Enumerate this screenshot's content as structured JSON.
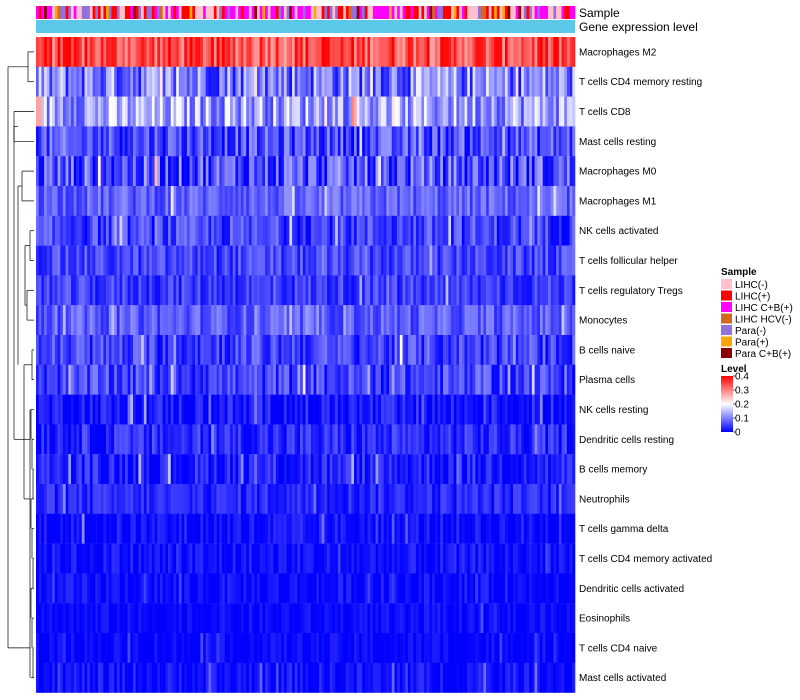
{
  "chart_data": {
    "type": "heatmap",
    "title": "",
    "annotations": {
      "sample_label": "Sample",
      "expression_label": "Gene expression level",
      "expression_color": "#5bc8ea"
    },
    "rows": [
      {
        "label": "Macrophages M2",
        "mean": 0.34,
        "spread": 0.07
      },
      {
        "label": "T cells CD4 memory resting",
        "mean": 0.1,
        "spread": 0.09
      },
      {
        "label": "T cells CD8",
        "mean": 0.13,
        "spread": 0.08
      },
      {
        "label": "Mast cells resting",
        "mean": 0.06,
        "spread": 0.06
      },
      {
        "label": "Macrophages M0",
        "mean": 0.06,
        "spread": 0.08
      },
      {
        "label": "Macrophages M1",
        "mean": 0.075,
        "spread": 0.04
      },
      {
        "label": "NK cells activated",
        "mean": 0.05,
        "spread": 0.05
      },
      {
        "label": "T cells follicular helper",
        "mean": 0.05,
        "spread": 0.04
      },
      {
        "label": "T cells regulatory  Tregs",
        "mean": 0.045,
        "spread": 0.04
      },
      {
        "label": "Monocytes",
        "mean": 0.07,
        "spread": 0.04
      },
      {
        "label": "B cells naive",
        "mean": 0.05,
        "spread": 0.05
      },
      {
        "label": "Plasma cells",
        "mean": 0.05,
        "spread": 0.05
      },
      {
        "label": "NK cells resting",
        "mean": 0.015,
        "spread": 0.04
      },
      {
        "label": "Dendritic cells resting",
        "mean": 0.03,
        "spread": 0.04
      },
      {
        "label": "B cells memory",
        "mean": 0.025,
        "spread": 0.04
      },
      {
        "label": "Neutrophils",
        "mean": 0.03,
        "spread": 0.03
      },
      {
        "label": "T cells gamma delta",
        "mean": 0.01,
        "spread": 0.03
      },
      {
        "label": "T cells CD4 memory activated",
        "mean": 0.01,
        "spread": 0.03
      },
      {
        "label": "Dendritic cells activated",
        "mean": 0.008,
        "spread": 0.025
      },
      {
        "label": "Eosinophils",
        "mean": 0.005,
        "spread": 0.02
      },
      {
        "label": "T cells CD4 naive",
        "mean": 0.005,
        "spread": 0.02
      },
      {
        "label": "Mast cells activated",
        "mean": 0.01,
        "spread": 0.03
      }
    ],
    "n_samples": 200,
    "color_scale": {
      "min": 0,
      "max": 0.4,
      "stops": [
        {
          "value": 0,
          "color": "#0000ff"
        },
        {
          "value": 0.2,
          "color": "#ffffff"
        },
        {
          "value": 0.4,
          "color": "#ff0000"
        }
      ]
    },
    "legend_sample": {
      "title": "Sample",
      "items": [
        {
          "label": "LIHC(-)",
          "color": "#ffc0cb"
        },
        {
          "label": "LIHC(+)",
          "color": "#ff0000"
        },
        {
          "label": "LIHC C+B(+)",
          "color": "#ff00ff"
        },
        {
          "label": "LIHC HCV(-)",
          "color": "#d2691e"
        },
        {
          "label": "Para(-)",
          "color": "#9370db"
        },
        {
          "label": "Para(+)",
          "color": "#ffa500"
        },
        {
          "label": "Para C+B(+)",
          "color": "#8b0000"
        }
      ]
    },
    "legend_level": {
      "title": "Level",
      "ticks": [
        "0.4",
        "0.3",
        "0.2",
        "0.1",
        "0"
      ],
      "tick_values": [
        0.4,
        0.3,
        0.2,
        0.1,
        0
      ]
    },
    "sample_distribution": [
      0.3,
      0.18,
      0.22,
      0.02,
      0.16,
      0.07,
      0.05
    ]
  }
}
